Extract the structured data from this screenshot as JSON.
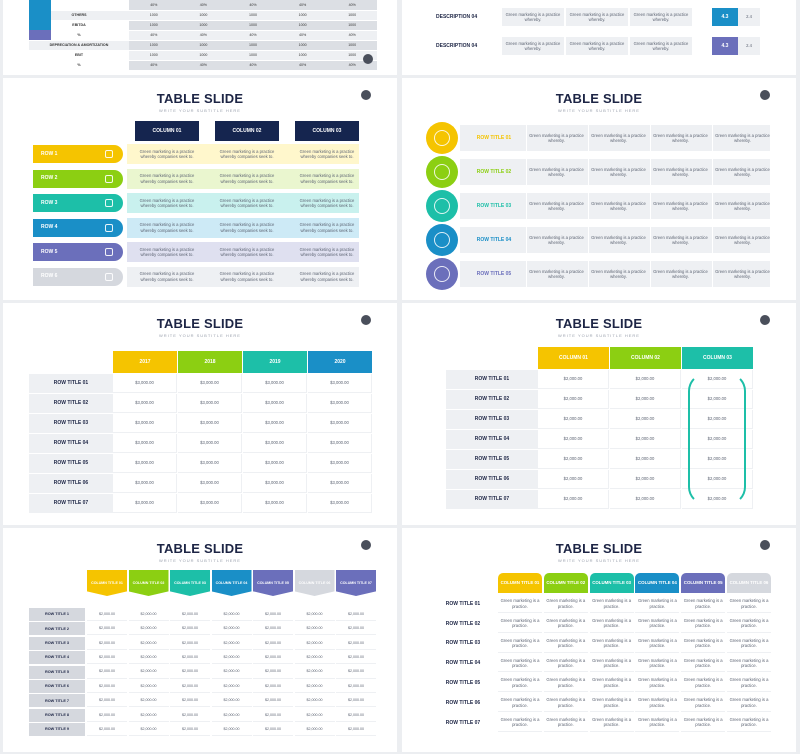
{
  "common": {
    "title": "TABLE SLIDE",
    "subtitle": "WRITE YOUR SUBTITLE HERE",
    "green_text": "Green marketing is a practice whereby companies seek to.",
    "short_text": "Green marketing is a practice whereby.",
    "tiny_text": "Green marketing is a practice.",
    "money": "$1,000.00",
    "money2": "$2,000.00",
    "money3": "$3,000.00"
  },
  "colors": {
    "yellow": "#f5c400",
    "green": "#8ccf12",
    "teal": "#1dbfa8",
    "blue": "#1a8fc7",
    "purple": "#6b6fbb",
    "grey": "#d5d8de",
    "navy": "#15254f"
  },
  "financial": {
    "rows": [
      {
        "label": "",
        "values": [
          "40%",
          "40%",
          "40%",
          "40%",
          "40%"
        ]
      },
      {
        "label": "OTHERS",
        "values": [
          "1000",
          "1000",
          "1000",
          "1000",
          "1000"
        ]
      },
      {
        "label": "EBITDA",
        "values": [
          "1000",
          "1000",
          "1000",
          "1000",
          "1000"
        ]
      },
      {
        "label": "%",
        "values": [
          "40%",
          "40%",
          "40%",
          "40%",
          "40%"
        ]
      },
      {
        "label": "DEPRECIATION & AMORTIZATION",
        "values": [
          "1000",
          "1000",
          "1000",
          "1000",
          "1000"
        ]
      },
      {
        "label": "EBIT",
        "values": [
          "1000",
          "1000",
          "1000",
          "1000",
          "1000"
        ]
      },
      {
        "label": "%",
        "values": [
          "40%",
          "40%",
          "40%",
          "40%",
          "40%"
        ]
      }
    ]
  },
  "descriptions": {
    "rows": [
      {
        "label": "DESCRIPTION 04",
        "cells": [
          "Green marketing is a practice whereby.",
          "Green marketing is a practice whereby.",
          "Green marketing is a practice whereby."
        ],
        "score": "4.3",
        "small": "2.4"
      },
      {
        "label": "DESCRIPTION 04",
        "cells": [
          "Green marketing is a practice whereby.",
          "Green marketing is a practice whereby.",
          "Green marketing is a practice whereby."
        ],
        "score": "4.3",
        "small": "2.4"
      }
    ]
  },
  "slide3": {
    "columns": [
      "COLUMN 01",
      "COLUMN 02",
      "COLUMN 03"
    ],
    "rows": [
      "ROW 1",
      "ROW 2",
      "ROW 3",
      "ROW 4",
      "ROW 5",
      "ROW 6"
    ],
    "icons": [
      "chart-icon",
      "trash-icon",
      "gamepad-icon",
      "search-icon",
      "building-icon",
      "gear-icon"
    ]
  },
  "slide4": {
    "rows": [
      "ROW TITLE 01",
      "ROW TITLE 02",
      "ROW TITLE 03",
      "ROW TITLE 04",
      "ROW TITLE 05"
    ],
    "icons": [
      "trophy-icon",
      "globe-icon",
      "calculator-icon",
      "printer-icon",
      "award-icon"
    ]
  },
  "slide5": {
    "years": [
      "2017",
      "2018",
      "2019",
      "2020"
    ],
    "rows": [
      "ROW TITLE 01",
      "ROW TITLE 02",
      "ROW TITLE 03",
      "ROW TITLE 04",
      "ROW TITLE 05",
      "ROW TITLE 06",
      "ROW TITLE 07"
    ]
  },
  "slide6": {
    "columns": [
      "COLUMN 01",
      "COLUMN 02",
      "COLUMN 03"
    ],
    "rows": [
      "ROW TITLE 01",
      "ROW TITLE 02",
      "ROW TITLE 03",
      "ROW TITLE 04",
      "ROW TITLE 05",
      "ROW TITLE 06",
      "ROW TITLE 07"
    ]
  },
  "slide7": {
    "columns": [
      "COLUMN TITLE 01",
      "COLUMN TITLE 02",
      "COLUMN TITLE 03",
      "COLUMN TITLE 04",
      "COLUMN TITLE 05",
      "COLUMN TITLE 06",
      "COLUMN TITLE 07"
    ],
    "rows": [
      "ROW TITLE 1",
      "ROW TITLE 2",
      "ROW TITLE 3",
      "ROW TITLE 4",
      "ROW TITLE 5",
      "ROW TITLE 6",
      "ROW TITLE 7",
      "ROW TITLE 8",
      "ROW TITLE 9"
    ]
  },
  "slide8": {
    "columns": [
      "COLUMN TITLE 01",
      "COLUMN TITLE 02",
      "COLUMN TITLE 03",
      "COLUMN TITLE 04",
      "COLUMN TITLE 05",
      "COLUMN TITLE 06"
    ],
    "rows": [
      "ROW TITLE 01",
      "ROW TITLE 02",
      "ROW TITLE 03",
      "ROW TITLE 04",
      "ROW TITLE 05",
      "ROW TITLE 06",
      "ROW TITLE 07"
    ]
  }
}
